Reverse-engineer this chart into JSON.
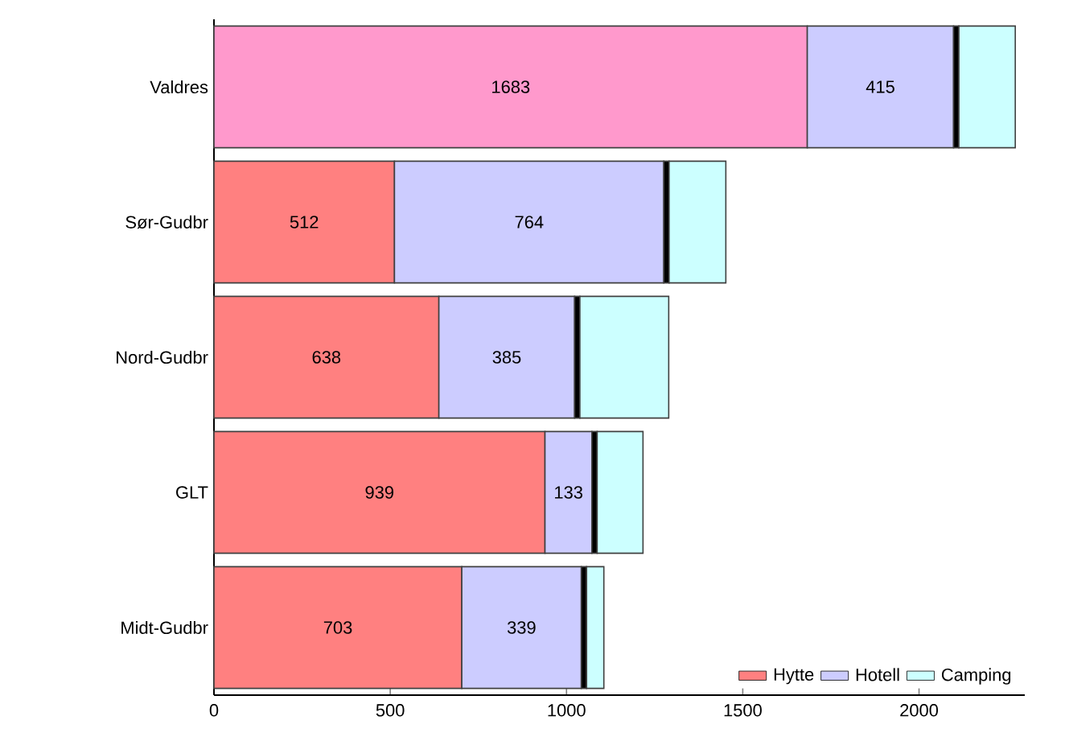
{
  "chart_data": {
    "type": "bar",
    "orientation": "horizontal",
    "stacked": true,
    "categories": [
      "Valdres",
      "Sør-Gudbr",
      "Nord-Gudbr",
      "GLT",
      "Midt-Gudbr"
    ],
    "series": [
      {
        "name": "Hytte",
        "color": "#ff8080",
        "colors": [
          "#ff99cc",
          "#ff8080",
          "#ff8080",
          "#ff8080",
          "#ff8080"
        ],
        "values": [
          1683,
          512,
          638,
          939,
          703
        ],
        "value_labels": [
          "1683",
          "512",
          "638",
          "939",
          "703"
        ]
      },
      {
        "name": "Hotell",
        "color": "#ccccff",
        "values": [
          415,
          764,
          385,
          133,
          339
        ],
        "value_labels": [
          "415",
          "764",
          "385",
          "133",
          "339"
        ]
      },
      {
        "color": "#000000",
        "values": [
          15,
          15,
          15,
          15,
          15
        ]
      },
      {
        "name": "Camping",
        "color": "#ccffff",
        "values": [
          160,
          161,
          252,
          130,
          49
        ]
      }
    ],
    "xlim": [
      0,
      2300
    ],
    "xticks": [
      0,
      500,
      1000,
      1500,
      2000
    ],
    "grid": false,
    "legend": "bottom right"
  }
}
